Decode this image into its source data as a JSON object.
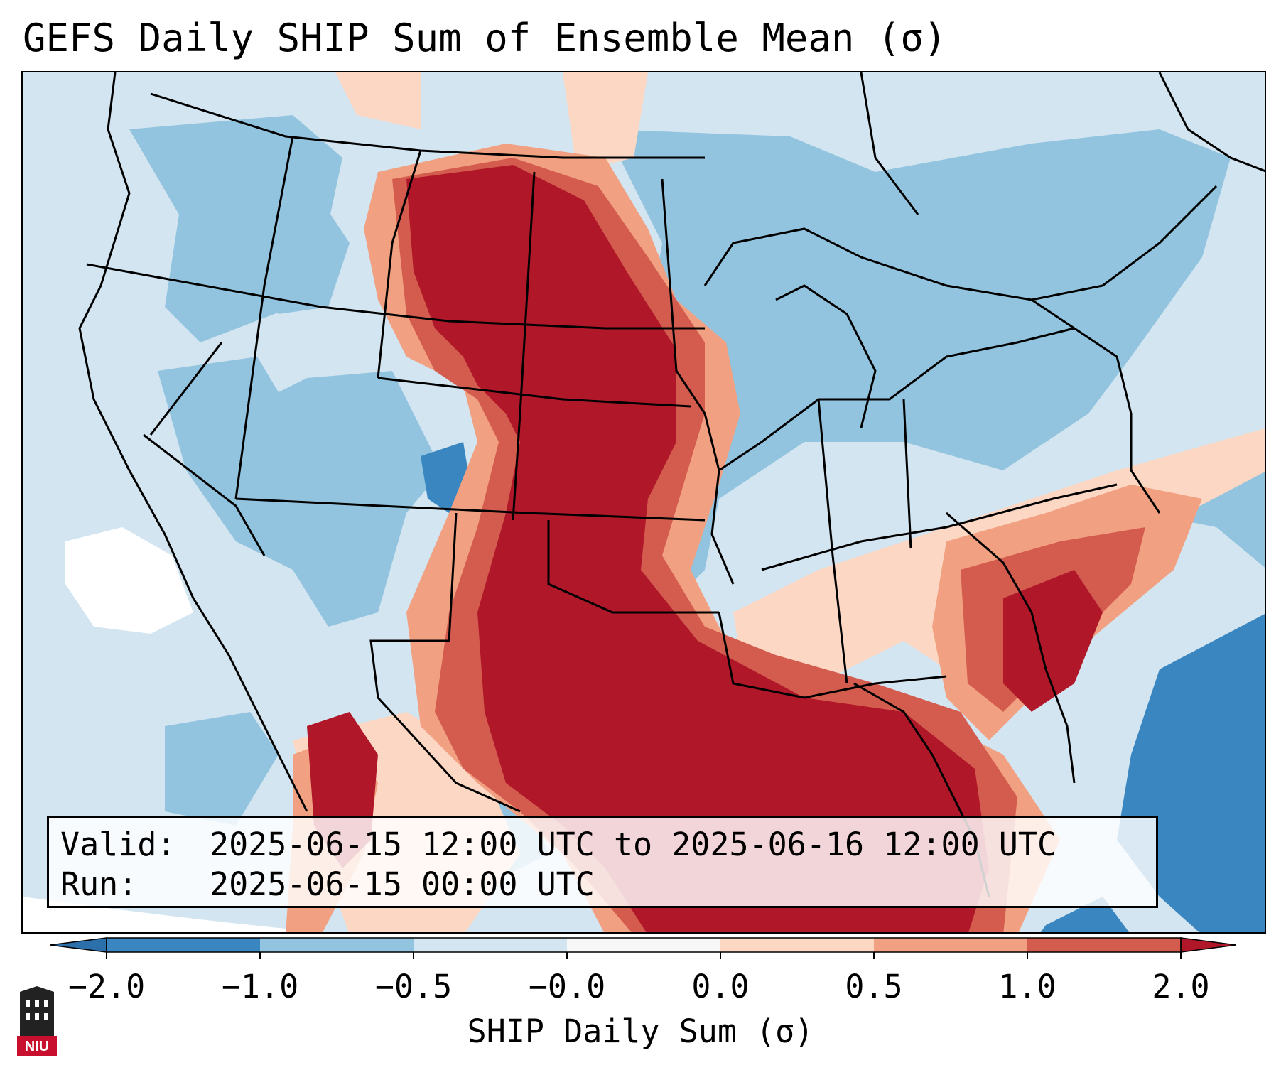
{
  "title": "GEFS Daily SHIP Sum of Ensemble Mean (σ)",
  "info": {
    "valid_label": "Valid:",
    "valid_value": "2025-06-15 12:00 UTC to 2025-06-16 12:00 UTC",
    "run_label": "Run:",
    "run_value": "2025-06-15 00:00 UTC"
  },
  "colorbar": {
    "label": "SHIP Daily Sum (σ)",
    "ticks": [
      "−2.0",
      "−1.0",
      "−0.5",
      "−0.0",
      "0.0",
      "0.5",
      "1.0",
      "2.0"
    ],
    "colors": [
      "#3a86c0",
      "#93c4df",
      "#d2e5f0",
      "#f7f7f7",
      "#fcd7c3",
      "#f1a181",
      "#d45c4e",
      "#b0182a"
    ],
    "extend": "both"
  },
  "map": {
    "region": "CONUS",
    "background_color": "#d2e5f0",
    "pattern": "strong positive SHIP anomaly from Montana through the Dakotas, Nebraska, Kansas, Oklahoma, Texas and the Gulf coast; negative anomalies across the West and Great Lakes"
  },
  "logo": {
    "text": "NIU",
    "color": "#c8102e"
  }
}
